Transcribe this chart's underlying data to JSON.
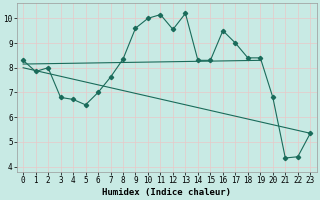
{
  "xlabel": "Humidex (Indice chaleur)",
  "xlim": [
    -0.5,
    23.5
  ],
  "ylim": [
    3.8,
    10.6
  ],
  "yticks": [
    4,
    5,
    6,
    7,
    8,
    9,
    10
  ],
  "xticks": [
    0,
    1,
    2,
    3,
    4,
    5,
    6,
    7,
    8,
    9,
    10,
    11,
    12,
    13,
    14,
    15,
    16,
    17,
    18,
    19,
    20,
    21,
    22,
    23
  ],
  "bg_color": "#c8eae4",
  "grid_color": "#e8c8c8",
  "line_color": "#1a6b5a",
  "line1_x": [
    0,
    1,
    2,
    3,
    4,
    5,
    6,
    7,
    8,
    9,
    10,
    11,
    12,
    13,
    14,
    15,
    16,
    17,
    18,
    19,
    20,
    21,
    22,
    23
  ],
  "line1_y": [
    8.3,
    7.85,
    8.0,
    6.8,
    6.72,
    6.5,
    7.0,
    7.62,
    8.35,
    9.6,
    10.0,
    10.15,
    9.55,
    10.2,
    8.3,
    8.3,
    9.5,
    9.0,
    8.4,
    8.4,
    6.8,
    4.35,
    4.4,
    5.35
  ],
  "line2_x": [
    0,
    19
  ],
  "line2_y": [
    8.15,
    8.3
  ],
  "line3_x": [
    0,
    23
  ],
  "line3_y": [
    8.0,
    5.35
  ]
}
